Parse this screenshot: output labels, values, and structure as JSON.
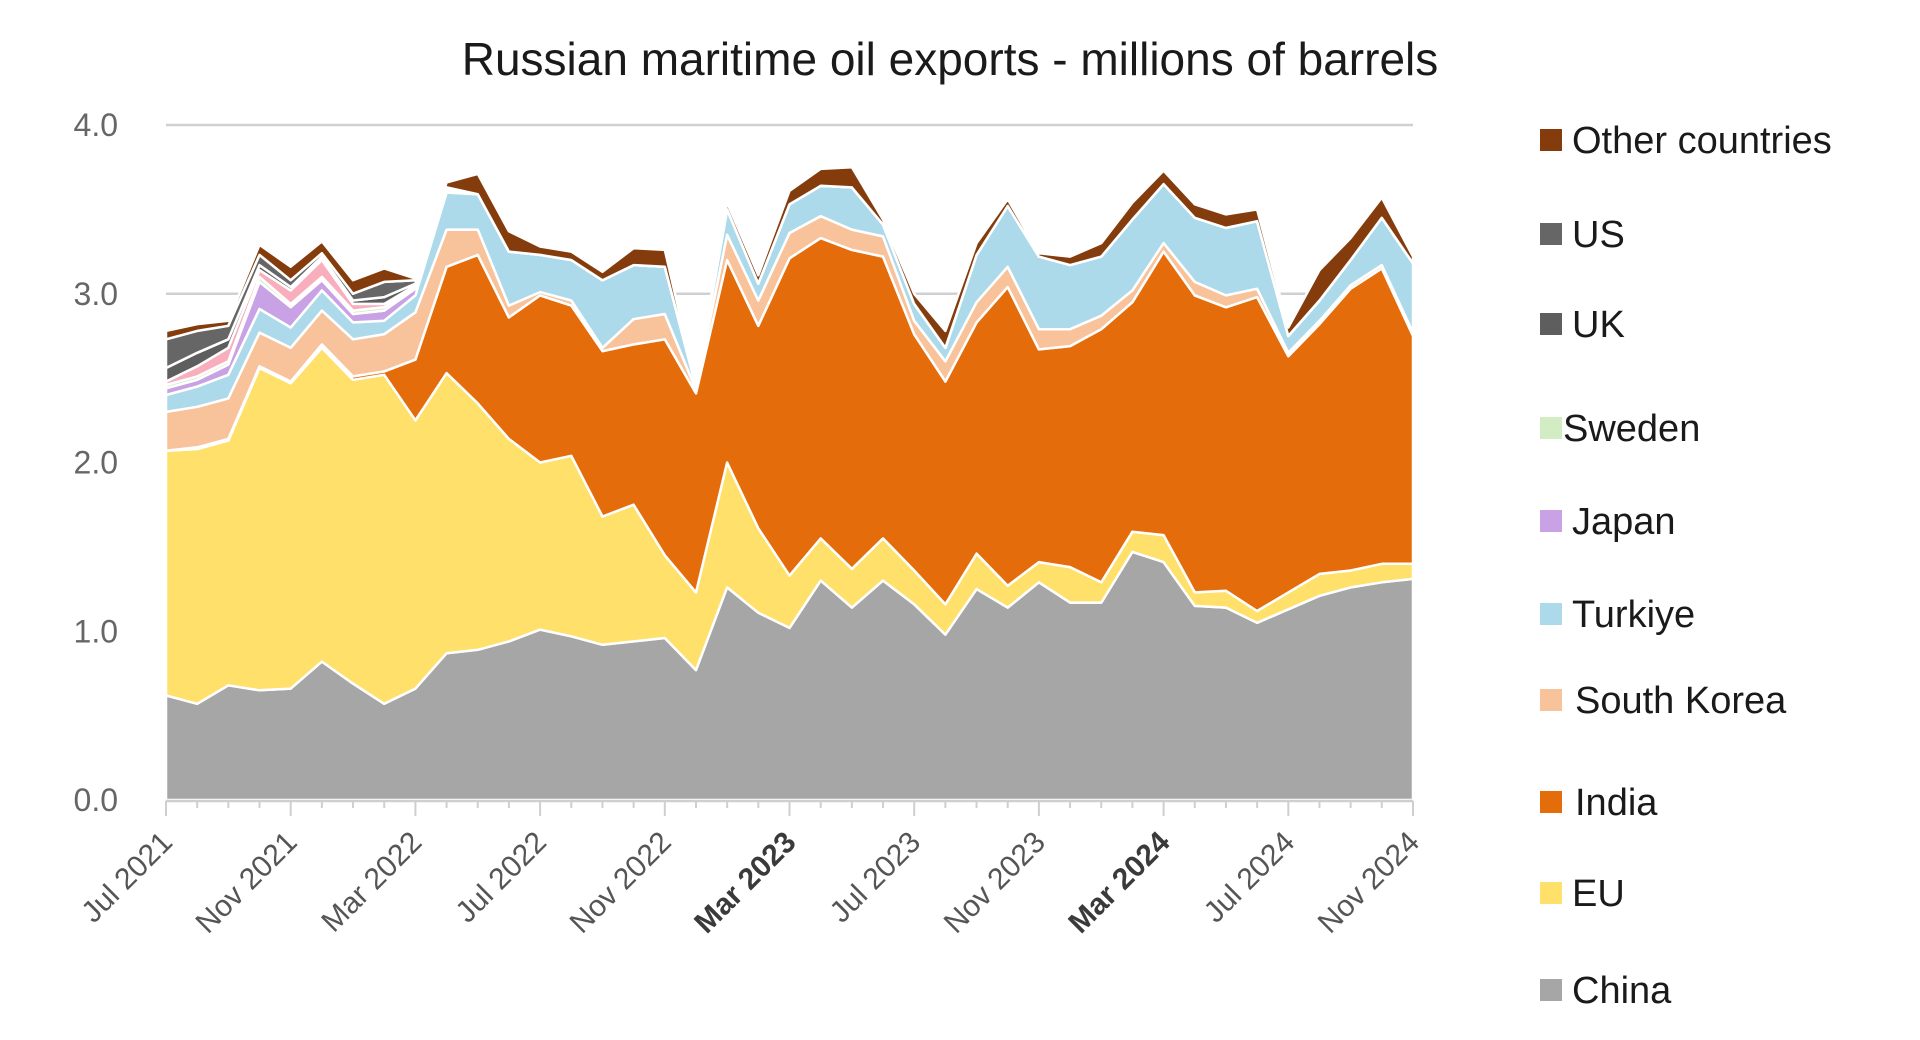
{
  "colors": {
    "China": "#a6a6a6",
    "EU": "#fee06b",
    "India": "#e46c0a",
    "South Korea": "#f8c29a",
    "Turkiye": "#acdaea",
    "Japan": "#c9a1e5",
    "Sweden": "#d2ecc4",
    "UK": "#5e5e5e",
    "US": "#666666",
    "Pink": "#f8aebd",
    "Other countries": "#843c0c"
  },
  "chart_data": {
    "type": "area",
    "stacked": true,
    "title": "Russian maritime oil exports - millions of barrels",
    "xlabel": "",
    "ylabel": "",
    "ylim": [
      0,
      4
    ],
    "y_ticks": [
      "0.0",
      "1.0",
      "2.0",
      "3.0",
      "4.0"
    ],
    "grid": "horizontal",
    "legend_position": "right",
    "x_tick_labels": [
      "Jul 2021",
      "Nov 2021",
      "Mar 2022",
      "Jul 2022",
      "Nov 2022",
      "Mar 2023",
      "Jul 2023",
      "Nov 2023",
      "Mar 2024",
      "Jul 2024",
      "Nov 2024"
    ],
    "x_tick_bold": [
      "Mar 2023",
      "Mar 2024"
    ],
    "x": [
      "Jul 2021",
      "Aug 2021",
      "Sep 2021",
      "Oct 2021",
      "Nov 2021",
      "Dec 2021",
      "Jan 2022",
      "Feb 2022",
      "Mar 2022",
      "Apr 2022",
      "May 2022",
      "Jun 2022",
      "Jul 2022",
      "Aug 2022",
      "Sep 2022",
      "Oct 2022",
      "Nov 2022",
      "Dec 2022",
      "Jan 2023",
      "Feb 2023",
      "Mar 2023",
      "Apr 2023",
      "May 2023",
      "Jun 2023",
      "Jul 2023",
      "Aug 2023",
      "Sep 2023",
      "Oct 2023",
      "Nov 2023",
      "Dec 2023",
      "Jan 2024",
      "Feb 2024",
      "Mar 2024",
      "Apr 2024",
      "May 2024",
      "Jun 2024",
      "Jul 2024",
      "Aug 2024",
      "Sep 2024",
      "Oct 2024",
      "Nov 2024"
    ],
    "series": [
      {
        "name": "China",
        "values": [
          0.62,
          0.57,
          0.68,
          0.65,
          0.66,
          0.82,
          0.69,
          0.57,
          0.66,
          0.87,
          0.89,
          0.94,
          1.01,
          0.97,
          0.92,
          0.94,
          0.96,
          0.77,
          1.26,
          1.11,
          1.02,
          1.3,
          1.14,
          1.3,
          1.16,
          0.98,
          1.25,
          1.14,
          1.29,
          1.17,
          1.17,
          1.47,
          1.41,
          1.15,
          1.14,
          1.05,
          1.13,
          1.21,
          1.26,
          1.29,
          1.31
        ]
      },
      {
        "name": "EU",
        "values": [
          1.45,
          1.51,
          1.45,
          1.91,
          1.81,
          1.86,
          1.8,
          1.95,
          1.59,
          1.66,
          1.46,
          1.2,
          0.99,
          1.07,
          0.76,
          0.81,
          0.49,
          0.46,
          0.74,
          0.5,
          0.31,
          0.25,
          0.23,
          0.25,
          0.2,
          0.18,
          0.21,
          0.13,
          0.12,
          0.21,
          0.12,
          0.12,
          0.16,
          0.08,
          0.1,
          0.07,
          0.1,
          0.13,
          0.1,
          0.11,
          0.09
        ]
      },
      {
        "name": "India",
        "values": [
          0,
          0.01,
          0.01,
          0.01,
          0.01,
          0.02,
          0.02,
          0.02,
          0.36,
          0.63,
          0.88,
          0.72,
          0.99,
          0.89,
          0.98,
          0.95,
          1.28,
          1.18,
          1.2,
          1.2,
          1.88,
          1.78,
          1.89,
          1.67,
          1.4,
          1.32,
          1.37,
          1.77,
          1.26,
          1.31,
          1.5,
          1.36,
          1.68,
          1.76,
          1.68,
          1.86,
          1.4,
          1.48,
          1.67,
          1.75,
          1.35
        ]
      },
      {
        "name": "South Korea",
        "values": [
          0.23,
          0.24,
          0.24,
          0.2,
          0.2,
          0.2,
          0.22,
          0.22,
          0.28,
          0.22,
          0.15,
          0.07,
          0.02,
          0.03,
          0.02,
          0.15,
          0.15,
          0.02,
          0.15,
          0.15,
          0.15,
          0.13,
          0.12,
          0.12,
          0.08,
          0.12,
          0.12,
          0.12,
          0.12,
          0.1,
          0.08,
          0.07,
          0.05,
          0.08,
          0.07,
          0.05,
          0.02,
          0.02,
          0.02,
          0.02,
          0.02
        ]
      },
      {
        "name": "Turkiye",
        "values": [
          0.1,
          0.12,
          0.14,
          0.14,
          0.12,
          0.12,
          0.1,
          0.08,
          0.1,
          0.22,
          0.21,
          0.32,
          0.22,
          0.24,
          0.4,
          0.32,
          0.28,
          0.02,
          0.15,
          0.1,
          0.17,
          0.18,
          0.25,
          0.07,
          0.1,
          0.08,
          0.28,
          0.36,
          0.43,
          0.38,
          0.35,
          0.42,
          0.35,
          0.38,
          0.4,
          0.4,
          0.1,
          0.12,
          0.15,
          0.28,
          0.41
        ]
      },
      {
        "name": "Japan",
        "values": [
          0.04,
          0.04,
          0.06,
          0.16,
          0.12,
          0.06,
          0.05,
          0.06,
          0.04,
          0.01,
          0,
          0,
          0,
          0,
          0,
          0,
          0,
          0,
          0,
          0,
          0,
          0,
          0,
          0,
          0,
          0,
          0,
          0,
          0,
          0,
          0,
          0,
          0,
          0,
          0,
          0,
          0,
          0,
          0,
          0,
          0
        ]
      },
      {
        "name": "Sweden",
        "values": [
          0.02,
          0.02,
          0.02,
          0.03,
          0.02,
          0.02,
          0.02,
          0.02,
          0.01,
          0.01,
          0,
          0,
          0,
          0,
          0,
          0,
          0,
          0,
          0,
          0,
          0,
          0,
          0,
          0,
          0,
          0,
          0,
          0,
          0,
          0,
          0,
          0,
          0,
          0,
          0,
          0,
          0,
          0,
          0,
          0,
          0
        ]
      },
      {
        "name": "",
        "values": [
          0.02,
          0.06,
          0.08,
          0.04,
          0.08,
          0.1,
          0.04,
          0.02,
          0.01,
          0,
          0,
          0,
          0,
          0,
          0,
          0,
          0,
          0,
          0,
          0,
          0,
          0,
          0,
          0,
          0,
          0,
          0,
          0,
          0,
          0,
          0,
          0,
          0,
          0,
          0,
          0,
          0,
          0,
          0,
          0,
          0
        ]
      },
      {
        "name": "UK",
        "values": [
          0.08,
          0.08,
          0.05,
          0.03,
          0.02,
          0.02,
          0.02,
          0.04,
          0.01,
          0.01,
          0,
          0,
          0,
          0,
          0,
          0,
          0,
          0,
          0,
          0,
          0,
          0,
          0,
          0,
          0,
          0,
          0,
          0,
          0,
          0,
          0,
          0,
          0,
          0,
          0,
          0,
          0,
          0,
          0,
          0,
          0
        ]
      },
      {
        "name": "US",
        "values": [
          0.17,
          0.13,
          0.08,
          0.06,
          0.04,
          0.02,
          0.04,
          0.09,
          0.02,
          0,
          0,
          0,
          0,
          0,
          0,
          0,
          0,
          0,
          0,
          0,
          0,
          0,
          0,
          0,
          0,
          0,
          0,
          0,
          0,
          0,
          0,
          0,
          0,
          0,
          0,
          0,
          0,
          0,
          0,
          0,
          0
        ]
      },
      {
        "name": "Other countries",
        "values": [
          0.05,
          0.04,
          0.03,
          0.06,
          0.08,
          0.07,
          0.08,
          0.08,
          0.01,
          0.03,
          0.12,
          0.12,
          0.05,
          0.05,
          0.05,
          0.1,
          0.1,
          0.01,
          0.04,
          0.05,
          0.08,
          0.1,
          0.12,
          0.03,
          0.06,
          0.1,
          0.07,
          0.04,
          0.02,
          0.05,
          0.08,
          0.1,
          0.08,
          0.08,
          0.08,
          0.07,
          0.05,
          0.18,
          0.13,
          0.12,
          0.04
        ]
      }
    ],
    "legend": [
      "Other countries",
      "US",
      "UK",
      "Sweden",
      "Japan",
      "Turkiye",
      "South Korea",
      "India",
      "EU",
      "China"
    ]
  }
}
